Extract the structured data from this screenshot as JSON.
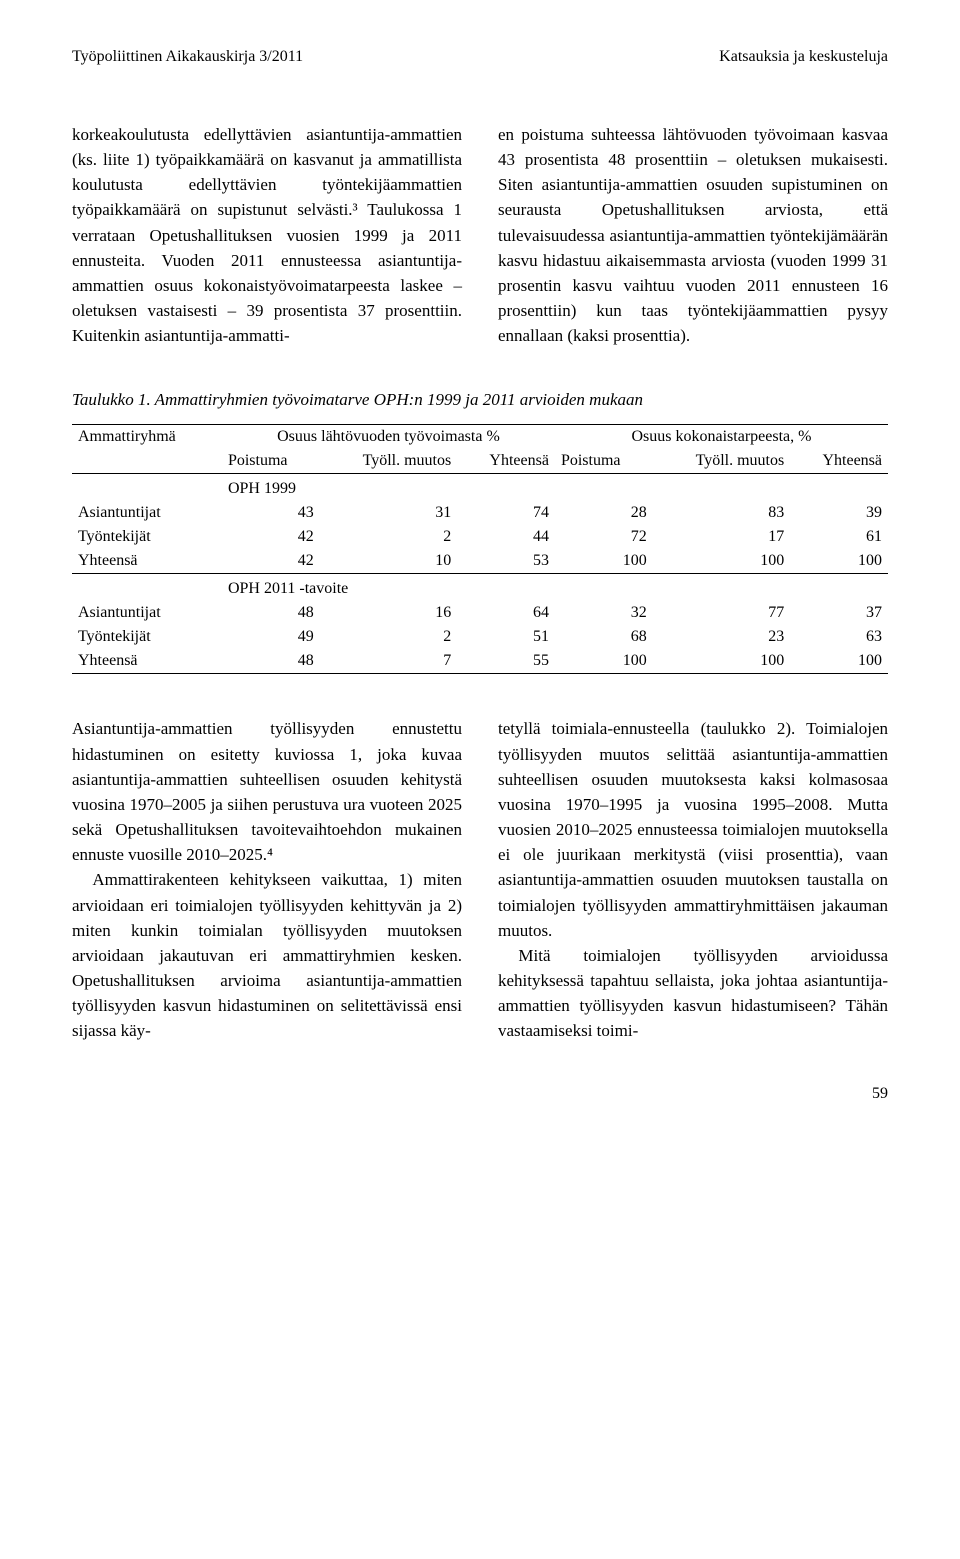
{
  "header": {
    "left": "Työpoliittinen Aikakauskirja 3/2011",
    "right": "Katsauksia ja keskusteluja"
  },
  "top_paragraphs": {
    "left": "korkeakoulutusta edellyttävien asiantuntija-ammattien (ks. liite 1) työpaikkamäärä on kasvanut ja ammatillista koulutusta edellyttävien työntekijäammattien työpaikkamäärä on supistunut selvästi.³ Taulukossa 1 verrataan Opetushallituksen vuosien 1999 ja 2011 ennusteita. Vuoden 2011 ennusteessa asiantuntija-ammattien osuus kokonaistyövoimatarpeesta laskee – oletuksen vastaisesti – 39 prosentista 37 prosenttiin. Kuitenkin asiantuntija-ammatti-",
    "right": "en poistuma suhteessa lähtövuoden työvoimaan kasvaa 43 prosentista 48 prosenttiin – oletuksen mukaisesti. Siten asiantuntija-ammattien osuuden supistuminen on seurausta Opetushallituksen arviosta, että tulevaisuudessa asiantuntija-ammattien työntekijämäärän kasvu hidastuu aikaisemmasta arviosta (vuoden 1999 31 prosentin kasvu vaihtuu vuoden 2011 ennusteen 16 prosenttiin) kun taas työntekijäammattien pysyy ennallaan (kaksi prosenttia)."
  },
  "table": {
    "caption": "Taulukko 1. Ammattiryhmien työvoimatarve OPH:n 1999 ja 2011 arvioiden mukaan",
    "header_group_label": "Ammattiryhmä",
    "group1": "Osuus lähtövuoden työvoimasta %",
    "group2": "Osuus kokonaistarpeesta, %",
    "sub_headers": [
      "Poistuma",
      "Työll. muutos",
      "Yhteensä",
      "Poistuma",
      "Työll. muutos",
      "Yhteensä"
    ],
    "section1_label": "OPH 1999",
    "section2_label": "OPH 2011 -tavoite",
    "row_labels": {
      "asiantuntijat": "Asiantuntijat",
      "tyontekijat": "Työntekijät",
      "yhteensa": "Yhteensä"
    },
    "section1": {
      "asiantuntijat": [
        43,
        31,
        74,
        28,
        83,
        39
      ],
      "tyontekijat": [
        42,
        2,
        44,
        72,
        17,
        61
      ],
      "yhteensa": [
        42,
        10,
        53,
        100,
        100,
        100
      ]
    },
    "section2": {
      "asiantuntijat": [
        48,
        16,
        64,
        32,
        77,
        37
      ],
      "tyontekijat": [
        49,
        2,
        51,
        68,
        23,
        63
      ],
      "yhteensa": [
        48,
        7,
        55,
        100,
        100,
        100
      ]
    }
  },
  "bottom_paragraphs": {
    "left_p1": "Asiantuntija-ammattien työllisyyden ennustettu hidastuminen on esitetty kuviossa 1, joka kuvaa asiantuntija-ammattien suhteellisen osuuden kehitystä vuosina 1970–2005 ja siihen perustuva ura vuoteen 2025 sekä Opetushallituksen tavoitevaihtoehdon mukainen ennuste vuosille 2010–2025.⁴",
    "left_p2": "Ammattirakenteen kehitykseen vaikuttaa, 1) miten arvioidaan eri toimialojen työllisyyden kehittyvän ja 2) miten kunkin toimialan työllisyyden muutoksen arvioidaan jakautuvan eri ammattiryhmien kesken. Opetushallituksen arvioima asiantuntija-ammattien työllisyyden kasvun hidastuminen on selitettävissä ensi sijassa käy-",
    "right_p1": "tetyllä toimiala-ennusteella (taulukko 2). Toimialojen työllisyyden muutos selittää asiantuntija-ammattien suhteellisen osuuden muutoksesta kaksi kolmasosaa vuosina 1970–1995 ja vuosina 1995–2008. Mutta vuosien 2010–2025 ennusteessa toimialojen muutoksella ei ole juurikaan merkitystä (viisi prosenttia), vaan asiantuntija-ammattien osuuden muutoksen taustalla on toimialojen työllisyyden ammattiryhmittäisen jakauman muutos.",
    "right_p2": "Mitä toimialojen työllisyyden arvioidussa kehityksessä tapahtuu sellaista, joka johtaa asiantuntija-ammattien työllisyyden kasvun hidastumiseen? Tähän vastaamiseksi toimi-"
  },
  "page_number": "59"
}
